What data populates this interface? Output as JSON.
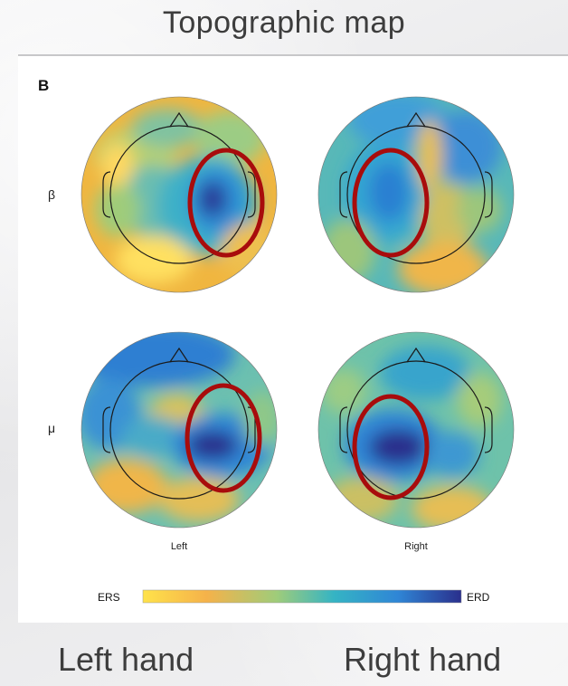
{
  "title": "Topographic map",
  "panel_label": "B",
  "rows": [
    "β",
    "μ"
  ],
  "columns": [
    "Left",
    "Right"
  ],
  "colorbar": {
    "left_label": "ERS",
    "right_label": "ERD",
    "colors": [
      "#ffe24a",
      "#f5b24a",
      "#9fcc7a",
      "#35b4c4",
      "#2f86d6",
      "#2a2f8c"
    ]
  },
  "bottom_labels": [
    "Left hand",
    "Right hand"
  ],
  "highlight_color": "#a80c0c"
}
